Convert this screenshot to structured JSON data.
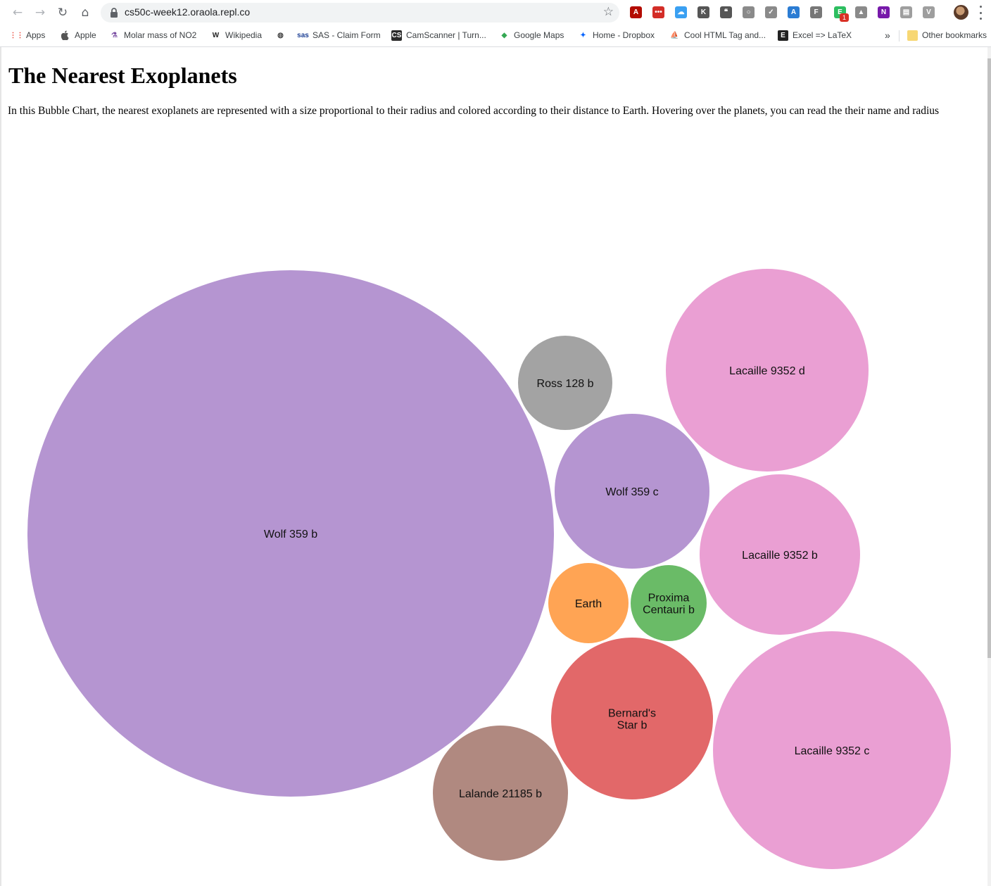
{
  "browser": {
    "url": "cs50c-week12.oraola.repl.co",
    "extensions": [
      {
        "icon": "acrobat-icon",
        "color": "#b30b00",
        "glyph": "A"
      },
      {
        "icon": "lastpass-icon",
        "color": "#d32d27",
        "glyph": "•••"
      },
      {
        "icon": "icloud-icon",
        "color": "#3aa0f2",
        "glyph": "☁"
      },
      {
        "icon": "keeper-icon",
        "color": "#555555",
        "glyph": "K"
      },
      {
        "icon": "quote-icon",
        "color": "#555555",
        "glyph": "❝"
      },
      {
        "icon": "circle-extension-icon",
        "color": "#8a8a8a",
        "glyph": "○"
      },
      {
        "icon": "check-circle-icon",
        "color": "#8a8a8a",
        "glyph": "✓"
      },
      {
        "icon": "ai-extension-icon",
        "color": "#2b7cd3",
        "glyph": "A"
      },
      {
        "icon": "f-extension-icon",
        "color": "#777777",
        "glyph": "F"
      },
      {
        "icon": "evernote-icon",
        "color": "#2dbe60",
        "glyph": "E"
      },
      {
        "icon": "drive-icon",
        "color": "#8a8a8a",
        "glyph": "▲"
      },
      {
        "icon": "onenote-icon",
        "color": "#7719aa",
        "glyph": "N"
      },
      {
        "icon": "document-icon",
        "color": "#9e9e9e",
        "glyph": "▤"
      },
      {
        "icon": "vimium-icon",
        "color": "#9e9e9e",
        "glyph": "V"
      }
    ],
    "extension_badge": "1"
  },
  "bookmarks": [
    {
      "label": "Apps",
      "icon": "apps-grid-icon"
    },
    {
      "label": "Apple",
      "icon": "apple-icon"
    },
    {
      "label": "Molar mass of NO2",
      "icon": "flask-icon"
    },
    {
      "label": "Wikipedia",
      "icon": "wikipedia-icon"
    },
    {
      "label": "",
      "icon": "globe-icon"
    },
    {
      "label": "SAS - Claim Form",
      "icon": "sas-icon"
    },
    {
      "label": "CamScanner | Turn...",
      "icon": "camscanner-icon"
    },
    {
      "label": "Google Maps",
      "icon": "google-maps-icon"
    },
    {
      "label": "Home - Dropbox",
      "icon": "dropbox-icon"
    },
    {
      "label": "Cool HTML Tag and...",
      "icon": "sail-icon"
    },
    {
      "label": "Excel => LaTeX",
      "icon": "excel-latex-icon"
    }
  ],
  "bookmarks_overflow": "»",
  "other_bookmarks": "Other bookmarks",
  "page": {
    "title": "The Nearest Exoplanets",
    "description": "In this Bubble Chart, the nearest exoplanets are represented with a size proportional to their radius and colored according to their distance to Earth. Hovering over the planets, you can read the their name and radius"
  },
  "bubbles": [
    {
      "name": "Wolf 359 b",
      "lines": [
        "Wolf 359 b"
      ],
      "color": "#b595d1"
    },
    {
      "name": "Ross 128 b",
      "lines": [
        "Ross 128 b"
      ],
      "color": "#a3a3a3"
    },
    {
      "name": "Lacaille 9352 d",
      "lines": [
        "Lacaille 9352 d"
      ],
      "color": "#ea9fd3"
    },
    {
      "name": "Wolf 359 c",
      "lines": [
        "Wolf 359 c"
      ],
      "color": "#b595d1"
    },
    {
      "name": "Lacaille 9352 b",
      "lines": [
        "Lacaille 9352 b"
      ],
      "color": "#ea9fd3"
    },
    {
      "name": "Earth",
      "lines": [
        "Earth"
      ],
      "color": "#ffa454"
    },
    {
      "name": "Proxima Centauri b",
      "lines": [
        "Proxima",
        "Centauri b"
      ],
      "color": "#6abb67"
    },
    {
      "name": "Bernard's Star b",
      "lines": [
        "Bernard's",
        "Star b"
      ],
      "color": "#e26869"
    },
    {
      "name": "Lalande 21185 b",
      "lines": [
        "Lalande 21185 b"
      ],
      "color": "#b08980"
    },
    {
      "name": "Lacaille 9352 c",
      "lines": [
        "Lacaille 9352 c"
      ],
      "color": "#ea9fd3"
    }
  ]
}
